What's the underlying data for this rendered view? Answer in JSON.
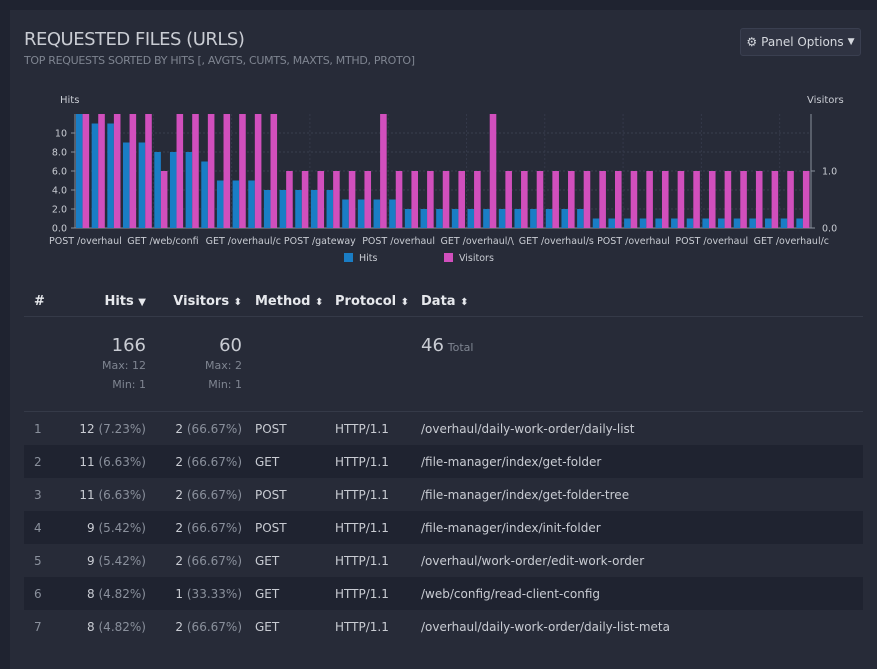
{
  "panel": {
    "title": "REQUESTED FILES (URLS)",
    "subtitle": "TOP REQUESTS SORTED BY HITS [, AVGTS, CUMTS, MAXTS, MTHD, PROTO]",
    "options_label": "Panel Options"
  },
  "chart_data": {
    "type": "bar",
    "left_axis_label": "Hits",
    "right_axis_label": "Visitors",
    "left_ticks": [
      "0.0",
      "2.0",
      "4.0",
      "6.0",
      "8.0",
      "10"
    ],
    "right_ticks": [
      "0.0",
      "1.0"
    ],
    "ylim_left": [
      0,
      12
    ],
    "ylim_right": [
      0,
      2
    ],
    "x_tick_labels": [
      "POST /overhaul",
      "GET /web/confi",
      "GET /overhaul/c",
      "POST /gateway",
      "POST /overhaul",
      "GET /overhaul/\\",
      "GET /overhaul/s",
      "POST /overhaul",
      "POST /overhaul",
      "GET /overhaul/c"
    ],
    "series": [
      {
        "name": "Hits",
        "color": "#1a7dc5",
        "values": [
          12,
          11,
          11,
          9,
          9,
          8,
          8,
          8,
          7,
          5,
          5,
          5,
          4,
          4,
          4,
          4,
          4,
          3,
          3,
          3,
          3,
          2,
          2,
          2,
          2,
          2,
          2,
          2,
          2,
          2,
          2,
          2,
          2,
          1,
          1,
          1,
          1,
          1,
          1,
          1,
          1,
          1,
          1,
          1,
          1,
          1,
          1
        ]
      },
      {
        "name": "Visitors",
        "color": "#d14fbd",
        "values": [
          2,
          2,
          2,
          2,
          2,
          1,
          2,
          2,
          2,
          2,
          2,
          2,
          2,
          1,
          1,
          1,
          1,
          1,
          1,
          2,
          1,
          1,
          1,
          1,
          1,
          1,
          2,
          1,
          1,
          1,
          1,
          1,
          1,
          1,
          1,
          1,
          1,
          1,
          1,
          1,
          1,
          1,
          1,
          1,
          1,
          1,
          1
        ]
      }
    ]
  },
  "table": {
    "headers": {
      "num": "#",
      "hits": "Hits",
      "visitors": "Visitors",
      "method": "Method",
      "protocol": "Protocol",
      "data": "Data"
    },
    "summary": {
      "hits_total": "166",
      "hits_max": "Max: 12",
      "hits_min": "Min: 1",
      "visitors_total": "60",
      "visitors_max": "Max: 2",
      "visitors_min": "Min: 1",
      "data_total": "46",
      "data_total_label": "Total"
    },
    "rows": [
      {
        "n": "1",
        "hits": "12",
        "hits_pct": "(7.23%)",
        "vis": "2",
        "vis_pct": "(66.67%)",
        "method": "POST",
        "proto": "HTTP/1.1",
        "data": "/overhaul/daily-work-order/daily-list"
      },
      {
        "n": "2",
        "hits": "11",
        "hits_pct": "(6.63%)",
        "vis": "2",
        "vis_pct": "(66.67%)",
        "method": "GET",
        "proto": "HTTP/1.1",
        "data": "/file-manager/index/get-folder"
      },
      {
        "n": "3",
        "hits": "11",
        "hits_pct": "(6.63%)",
        "vis": "2",
        "vis_pct": "(66.67%)",
        "method": "POST",
        "proto": "HTTP/1.1",
        "data": "/file-manager/index/get-folder-tree"
      },
      {
        "n": "4",
        "hits": "9",
        "hits_pct": "(5.42%)",
        "vis": "2",
        "vis_pct": "(66.67%)",
        "method": "POST",
        "proto": "HTTP/1.1",
        "data": "/file-manager/index/init-folder"
      },
      {
        "n": "5",
        "hits": "9",
        "hits_pct": "(5.42%)",
        "vis": "2",
        "vis_pct": "(66.67%)",
        "method": "GET",
        "proto": "HTTP/1.1",
        "data": "/overhaul/work-order/edit-work-order"
      },
      {
        "n": "6",
        "hits": "8",
        "hits_pct": "(4.82%)",
        "vis": "1",
        "vis_pct": "(33.33%)",
        "method": "GET",
        "proto": "HTTP/1.1",
        "data": "/web/config/read-client-config"
      },
      {
        "n": "7",
        "hits": "8",
        "hits_pct": "(4.82%)",
        "vis": "2",
        "vis_pct": "(66.67%)",
        "method": "GET",
        "proto": "HTTP/1.1",
        "data": "/overhaul/daily-work-order/daily-list-meta"
      }
    ]
  }
}
